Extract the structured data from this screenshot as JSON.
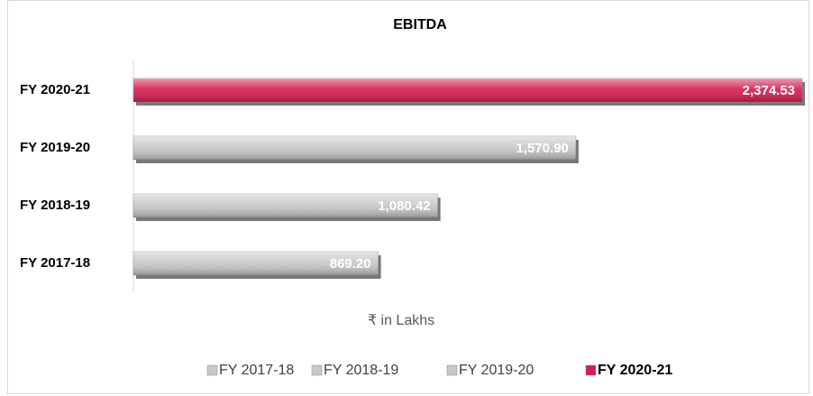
{
  "chart_data": {
    "type": "barh",
    "title": "EBITDA",
    "categories": [
      "FY 2017-18",
      "FY 2018-19",
      "FY 2019-20",
      "FY 2020-21"
    ],
    "values": [
      869.2,
      1080.42,
      1570.9,
      2374.53
    ],
    "value_labels": [
      "869.20",
      "1,080.42",
      "1,570.90",
      "2,374.53"
    ],
    "colors": [
      "#c8c8c8",
      "#c8c8c8",
      "#c8c8c8",
      "#d81b50"
    ],
    "legend_bold": [
      false,
      false,
      false,
      true
    ],
    "xlabel": "₹ in Lakhs",
    "xlim": [
      0,
      2400
    ]
  }
}
